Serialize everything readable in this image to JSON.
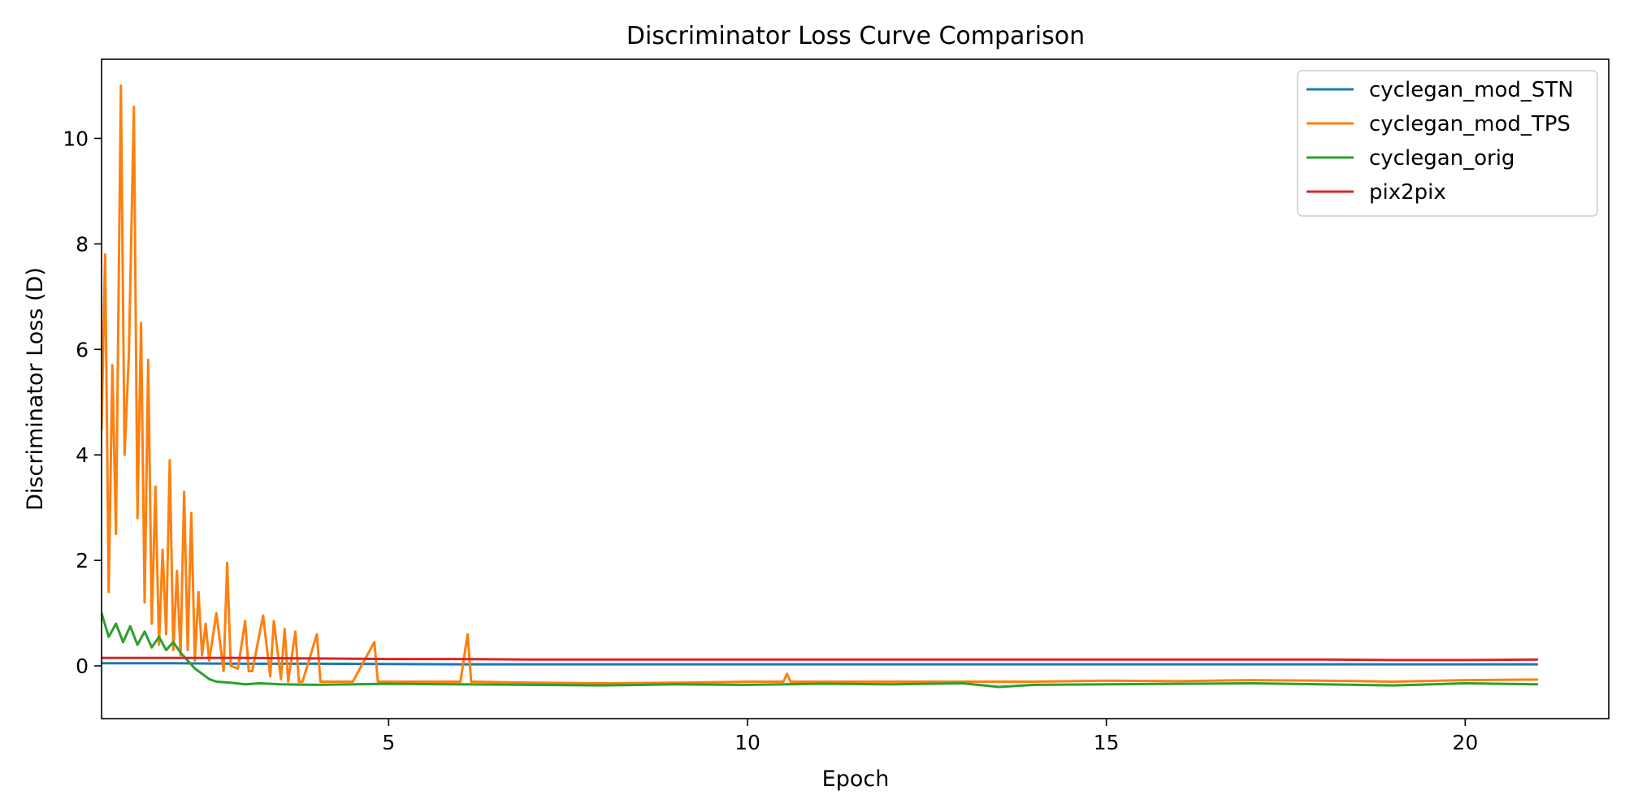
{
  "chart_data": {
    "type": "line",
    "title": "Discriminator Loss Curve Comparison",
    "xlabel": "Epoch",
    "ylabel": "Discriminator Loss (D)",
    "xlim": [
      1,
      22
    ],
    "ylim": [
      -1,
      11.5
    ],
    "x_ticks": [
      5,
      10,
      15,
      20
    ],
    "y_ticks": [
      0,
      2,
      4,
      6,
      8,
      10
    ],
    "grid": false,
    "legend_position": "top-right",
    "series": [
      {
        "name": "cyclegan_mod_STN",
        "color": "#1f77b4",
        "x": [
          1.0,
          2.0,
          3.0,
          4.0,
          6.0,
          8.0,
          10.0,
          12.0,
          14.0,
          16.0,
          18.0,
          20.0,
          21.0
        ],
        "y": [
          0.05,
          0.05,
          0.04,
          0.04,
          0.03,
          0.03,
          0.03,
          0.03,
          0.03,
          0.03,
          0.03,
          0.03,
          0.03
        ]
      },
      {
        "name": "cyclegan_mod_TPS",
        "color": "#ff7f0e",
        "x": [
          1.0,
          1.05,
          1.1,
          1.15,
          1.2,
          1.27,
          1.32,
          1.38,
          1.45,
          1.5,
          1.55,
          1.6,
          1.65,
          1.7,
          1.75,
          1.8,
          1.85,
          1.9,
          1.95,
          2.0,
          2.05,
          2.1,
          2.15,
          2.2,
          2.25,
          2.3,
          2.35,
          2.4,
          2.45,
          2.5,
          2.6,
          2.7,
          2.75,
          2.8,
          2.9,
          3.0,
          3.05,
          3.1,
          3.25,
          3.35,
          3.4,
          3.5,
          3.55,
          3.6,
          3.7,
          3.75,
          3.8,
          4.0,
          4.05,
          4.1,
          4.5,
          4.8,
          4.85,
          4.9,
          5.2,
          6.0,
          6.1,
          6.15,
          6.2,
          7.0,
          8.0,
          9.0,
          10.0,
          10.5,
          10.55,
          10.6,
          11.0,
          12.0,
          13.0,
          14.0,
          15.0,
          16.0,
          17.0,
          18.0,
          19.0,
          20.0,
          21.0
        ],
        "y": [
          4.5,
          7.8,
          1.4,
          5.7,
          2.5,
          11.0,
          4.0,
          5.9,
          10.6,
          2.8,
          6.5,
          1.2,
          5.8,
          0.8,
          3.4,
          0.4,
          2.2,
          0.6,
          3.9,
          0.3,
          1.8,
          0.2,
          3.3,
          0.3,
          2.9,
          0.1,
          1.4,
          0.2,
          0.8,
          0.1,
          1.0,
          -0.1,
          1.95,
          0.0,
          -0.05,
          0.85,
          -0.1,
          -0.1,
          0.95,
          -0.2,
          0.85,
          -0.25,
          0.7,
          -0.3,
          0.65,
          -0.3,
          -0.3,
          0.6,
          -0.3,
          -0.3,
          -0.3,
          0.45,
          -0.3,
          -0.3,
          -0.3,
          -0.3,
          0.6,
          -0.3,
          -0.3,
          -0.32,
          -0.33,
          -0.32,
          -0.3,
          -0.3,
          -0.15,
          -0.3,
          -0.3,
          -0.3,
          -0.3,
          -0.3,
          -0.28,
          -0.29,
          -0.27,
          -0.28,
          -0.3,
          -0.27,
          -0.26
        ]
      },
      {
        "name": "cyclegan_orig",
        "color": "#2ca02c",
        "x": [
          1.0,
          1.1,
          1.2,
          1.3,
          1.4,
          1.5,
          1.6,
          1.7,
          1.8,
          1.9,
          2.0,
          2.1,
          2.2,
          2.3,
          2.4,
          2.5,
          2.6,
          2.8,
          3.0,
          3.2,
          3.5,
          4.0,
          5.0,
          6.0,
          7.0,
          8.0,
          9.0,
          10.0,
          11.0,
          12.0,
          13.0,
          13.5,
          14.0,
          15.0,
          16.0,
          17.0,
          18.0,
          19.0,
          20.0,
          21.0
        ],
        "y": [
          1.0,
          0.55,
          0.8,
          0.45,
          0.75,
          0.4,
          0.65,
          0.35,
          0.55,
          0.3,
          0.45,
          0.25,
          0.1,
          -0.05,
          -0.15,
          -0.25,
          -0.3,
          -0.32,
          -0.35,
          -0.33,
          -0.35,
          -0.36,
          -0.34,
          -0.35,
          -0.36,
          -0.37,
          -0.35,
          -0.36,
          -0.34,
          -0.35,
          -0.33,
          -0.4,
          -0.36,
          -0.35,
          -0.34,
          -0.33,
          -0.35,
          -0.37,
          -0.33,
          -0.35
        ]
      },
      {
        "name": "pix2pix",
        "color": "#d62728",
        "x": [
          1.0,
          2.0,
          3.0,
          4.0,
          5.0,
          6.0,
          7.0,
          8.0,
          9.0,
          10.0,
          11.0,
          12.0,
          13.0,
          14.0,
          15.0,
          16.0,
          17.0,
          18.0,
          19.0,
          20.0,
          21.0
        ],
        "y": [
          0.15,
          0.15,
          0.15,
          0.14,
          0.13,
          0.13,
          0.12,
          0.12,
          0.12,
          0.12,
          0.12,
          0.12,
          0.12,
          0.12,
          0.12,
          0.12,
          0.12,
          0.12,
          0.11,
          0.11,
          0.12
        ]
      }
    ]
  }
}
